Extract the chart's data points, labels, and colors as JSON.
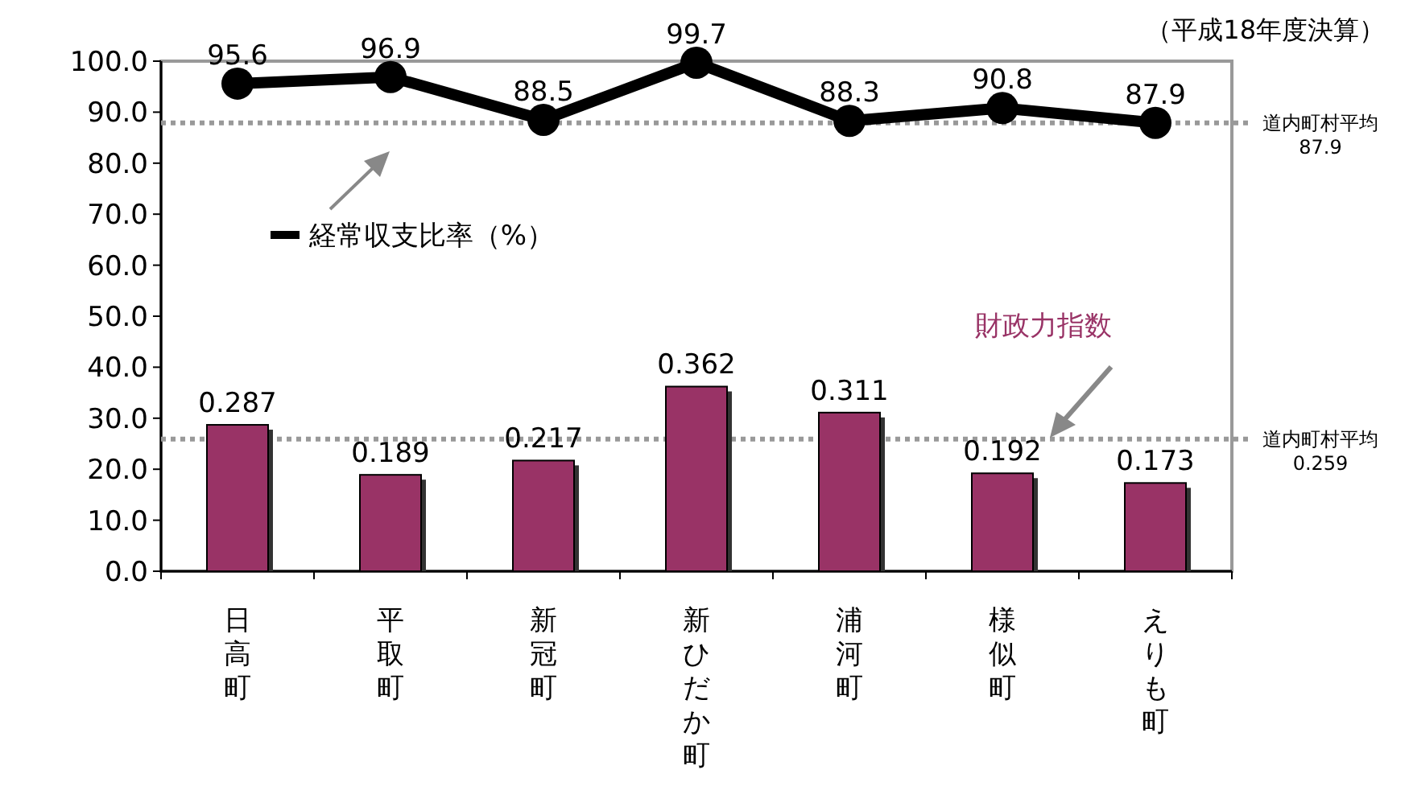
{
  "chart_data": {
    "type": "bar",
    "categories": [
      "日高町",
      "平取町",
      "新冠町",
      "新ひだか町",
      "浦河町",
      "様似町",
      "えりも町"
    ],
    "series": [
      {
        "name": "財政力指数",
        "axis": "y2",
        "color": "#993366",
        "values": [
          0.287,
          0.189,
          0.217,
          0.362,
          0.311,
          0.192,
          0.173
        ]
      },
      {
        "name": "経常収支比率（%）",
        "type": "line",
        "axis": "y",
        "color": "#000000",
        "values": [
          95.6,
          96.9,
          88.5,
          99.7,
          88.3,
          90.8,
          87.9
        ]
      }
    ],
    "ylim": [
      0,
      100
    ],
    "yticks": [
      {
        "value": 0,
        "label": "0.0"
      },
      {
        "value": 10,
        "label": "10.0"
      },
      {
        "value": 20,
        "label": "20.0"
      },
      {
        "value": 30,
        "label": "30.0"
      },
      {
        "value": 40,
        "label": "40.0"
      },
      {
        "value": 50,
        "label": "50.0"
      },
      {
        "value": 60,
        "label": "60.0"
      },
      {
        "value": 70,
        "label": "70.0"
      },
      {
        "value": 80,
        "label": "80.0"
      },
      {
        "value": 90,
        "label": "90.0"
      },
      {
        "value": 100,
        "label": "100.0"
      }
    ],
    "y2lim": [
      0,
      1
    ],
    "ref_lines": [
      {
        "axis": "y",
        "value": 87.9,
        "label": "道内町村平均\n87.9",
        "color": "#999999",
        "line_style": "dotted"
      },
      {
        "axis": "y2",
        "value": 0.259,
        "label": "道内町村平均\n0.259",
        "color": "#999999",
        "line_style": "dotted"
      }
    ],
    "annotations": [
      "（平成18年度決算）"
    ],
    "data_labels": true,
    "marker": "circle",
    "line_style": "solid"
  }
}
